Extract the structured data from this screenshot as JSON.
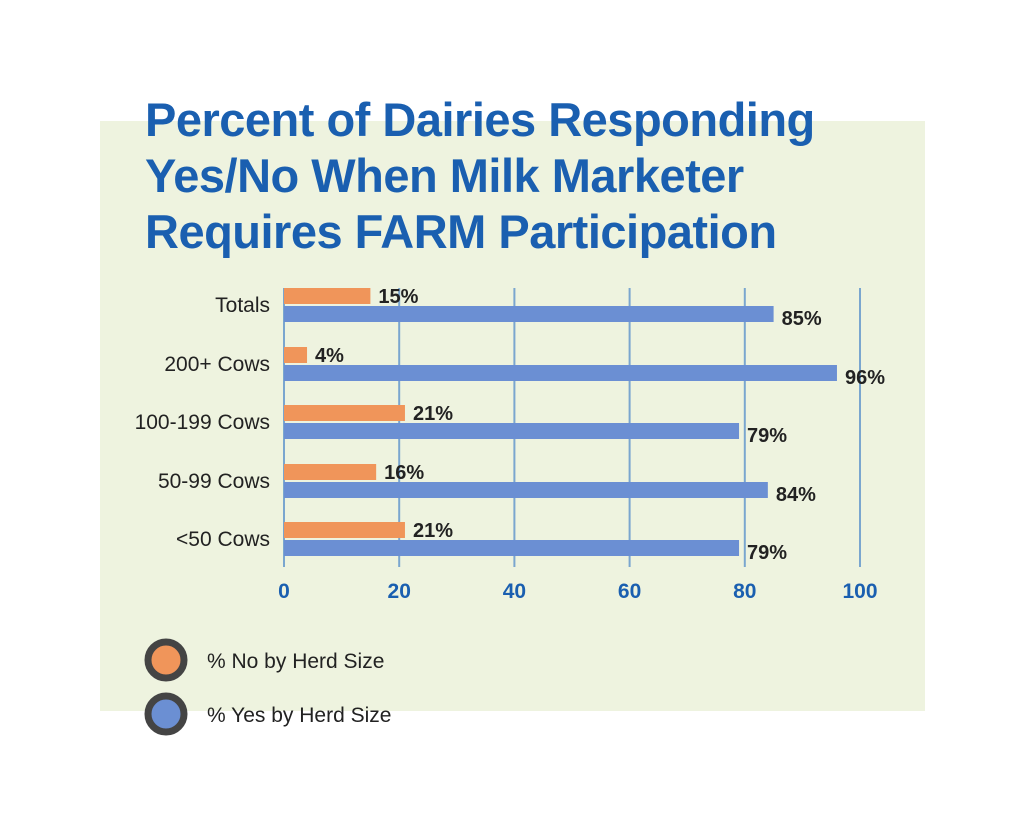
{
  "chart_data": {
    "type": "bar",
    "orientation": "horizontal",
    "title": "Percent of Dairies Responding Yes/No When Milk Marketer Requires FARM Participation",
    "title_lines": [
      "Percent of Dairies Responding",
      "Yes/No When Milk Marketer",
      "Requires FARM Participation"
    ],
    "categories": [
      "Totals",
      "200+ Cows",
      "100-199 Cows",
      "50-99 Cows",
      "<50 Cows"
    ],
    "series": [
      {
        "name": "% No by Herd Size",
        "values": [
          15,
          4,
          21,
          16,
          21
        ],
        "labels": [
          "15%",
          "4%",
          "21%",
          "16%",
          "21%"
        ],
        "color": "#f0955a"
      },
      {
        "name": "% Yes by Herd Size",
        "values": [
          85,
          96,
          79,
          84,
          79
        ],
        "labels": [
          "85%",
          "96%",
          "79%",
          "84%",
          "79%"
        ],
        "color": "#6b8fd3"
      }
    ],
    "xlim": [
      0,
      100
    ],
    "xticks": [
      "0",
      "20",
      "40",
      "60",
      "80",
      "100"
    ],
    "grid": true,
    "legend_position": "bottom-left",
    "colors": {
      "title": "#1a5fb0",
      "panel_background": "#eef3df",
      "gridline": "#7aa6cf",
      "tick_label": "#1a5fb0",
      "legend_ring": "#444444"
    }
  }
}
